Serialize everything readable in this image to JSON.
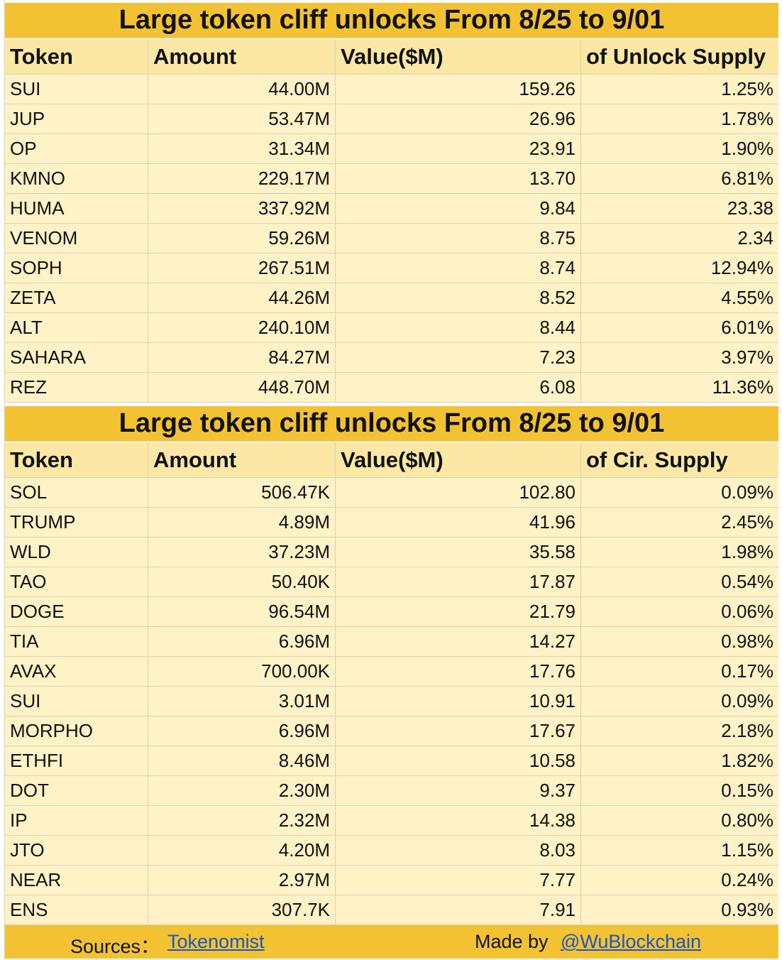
{
  "table1": {
    "title": "Large token cliff unlocks From  8/25 to 9/01",
    "headers": [
      "Token",
      "Amount",
      "Value($M)",
      "of Unlock Supply"
    ],
    "rows": [
      [
        "SUI",
        "44.00M",
        "159.26",
        "1.25%"
      ],
      [
        "JUP",
        "53.47M",
        "26.96",
        "1.78%"
      ],
      [
        "OP",
        "31.34M",
        "23.91",
        "1.90%"
      ],
      [
        "KMNO",
        "229.17M",
        "13.70",
        "6.81%"
      ],
      [
        "HUMA",
        "337.92M",
        "9.84",
        "23.38"
      ],
      [
        "VENOM",
        "59.26M",
        "8.75",
        "2.34"
      ],
      [
        "SOPH",
        "267.51M",
        "8.74",
        "12.94%"
      ],
      [
        "ZETA",
        "44.26M",
        "8.52",
        "4.55%"
      ],
      [
        "ALT",
        "240.10M",
        "8.44",
        "6.01%"
      ],
      [
        "SAHARA",
        "84.27M",
        "7.23",
        "3.97%"
      ],
      [
        "REZ",
        "448.70M",
        "6.08",
        "11.36%"
      ]
    ]
  },
  "table2": {
    "title": "Large token cliff unlocks From  8/25 to 9/01",
    "headers": [
      "Token",
      "Amount",
      "Value($M)",
      "of Cir. Supply"
    ],
    "rows": [
      [
        "SOL",
        "506.47K",
        "102.80",
        "0.09%"
      ],
      [
        "TRUMP",
        "4.89M",
        "41.96",
        "2.45%"
      ],
      [
        "WLD",
        "37.23M",
        "35.58",
        "1.98%"
      ],
      [
        "TAO",
        "50.40K",
        "17.87",
        "0.54%"
      ],
      [
        "DOGE",
        "96.54M",
        "21.79",
        "0.06%"
      ],
      [
        "TIA",
        "6.96M",
        "14.27",
        "0.98%"
      ],
      [
        "AVAX",
        "700.00K",
        "17.76",
        "0.17%"
      ],
      [
        "SUI",
        "3.01M",
        "10.91",
        "0.09%"
      ],
      [
        "MORPHO",
        "6.96M",
        "17.67",
        "2.18%"
      ],
      [
        "ETHFI",
        "8.46M",
        "10.58",
        "1.82%"
      ],
      [
        "DOT",
        "2.30M",
        "9.37",
        "0.15%"
      ],
      [
        "IP",
        "2.32M",
        "14.38",
        "0.80%"
      ],
      [
        "JTO",
        "4.20M",
        "8.03",
        "1.15%"
      ],
      [
        "NEAR",
        "2.97M",
        "7.77",
        "0.24%"
      ],
      [
        "ENS",
        "307.7K",
        "7.91",
        "0.93%"
      ]
    ]
  },
  "footer": {
    "sources_label": "Sources：",
    "sources_link": "Tokenomist",
    "made_by_label": "Made by",
    "made_by_link": "@WuBlockchain"
  },
  "colors": {
    "title_bg": "#f2c232",
    "header_bg": "#fce8a4",
    "cell_bg": "#fff2c6",
    "link": "#1a56c8"
  }
}
